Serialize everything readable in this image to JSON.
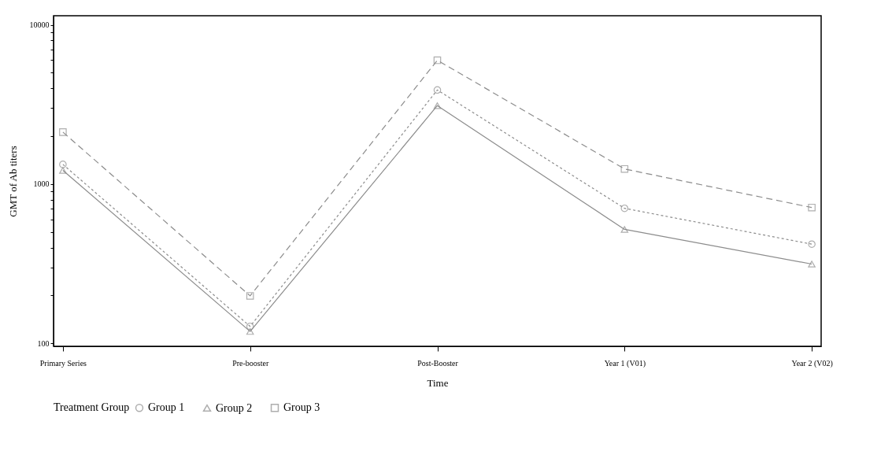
{
  "chart_data": {
    "type": "line",
    "xlabel": "Time",
    "ylabel": "GMT of Ab titers",
    "legend_title": "Treatment Group",
    "legend": "bottom",
    "log": "y",
    "grid": false,
    "categories": [
      "Primary Series",
      "Pre-booster",
      "Post-Booster",
      "Year 1 (V01)",
      "Year 2 (V02)"
    ],
    "ylim": [
      96,
      11400
    ],
    "yticks": [
      100,
      {
        "value": 200,
        "label": null
      },
      {
        "value": 300,
        "label": null
      },
      {
        "value": 400,
        "label": null
      },
      {
        "value": 500,
        "label": null
      },
      {
        "value": 600,
        "label": null
      },
      {
        "value": 700,
        "label": null
      },
      {
        "value": 800,
        "label": null
      },
      {
        "value": 900,
        "label": null
      },
      1000,
      {
        "value": 2000,
        "label": null
      },
      {
        "value": 3000,
        "label": null
      },
      {
        "value": 4000,
        "label": null
      },
      {
        "value": 5000,
        "label": null
      },
      {
        "value": 6000,
        "label": null
      },
      {
        "value": 7000,
        "label": null
      },
      {
        "value": 8000,
        "label": null
      },
      {
        "value": 9000,
        "label": null
      },
      10000
    ],
    "series": [
      {
        "name": "Group 1",
        "color": "#8c8c8c",
        "marker": "circle",
        "line_style": "dotted",
        "values": [
          1330,
          128,
          3900,
          705,
          420
        ]
      },
      {
        "name": "Group 2",
        "color": "#8c8c8c",
        "marker": "triangle",
        "line_style": "solid",
        "values": [
          1220,
          119,
          3110,
          520,
          315
        ]
      },
      {
        "name": "Group 3",
        "color": "#8c8c8c",
        "marker": "square",
        "line_style": "dashed",
        "values": [
          2120,
          199,
          5990,
          1245,
          713
        ]
      }
    ]
  }
}
